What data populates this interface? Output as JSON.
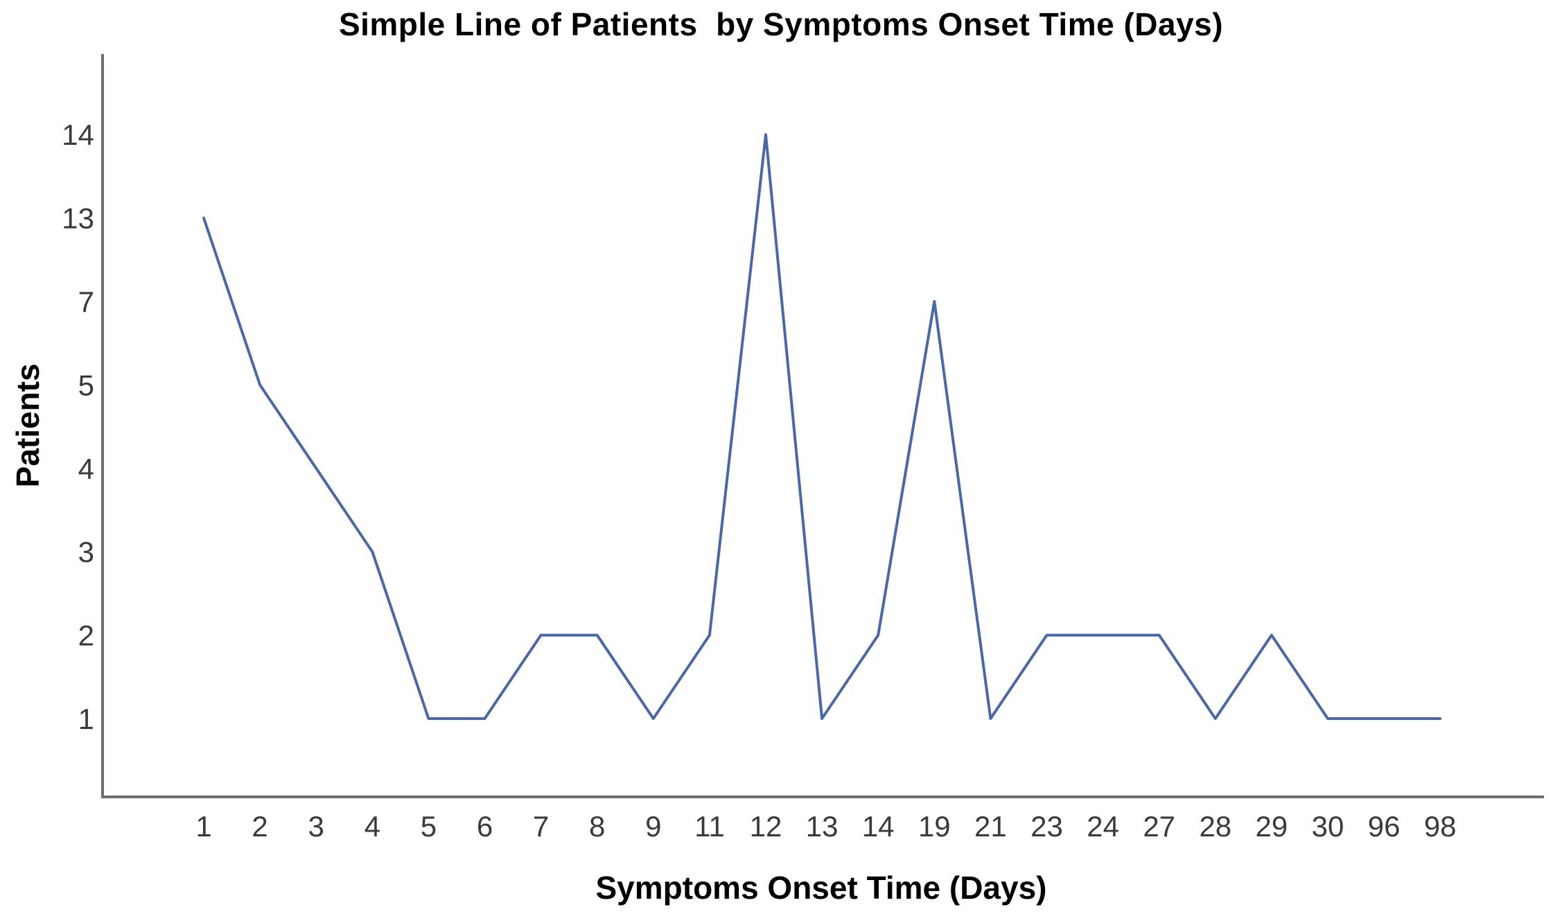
{
  "chart_data": {
    "type": "line",
    "title": "Simple Line of Patients  by Symptoms Onset Time (Days)",
    "xlabel": "Symptoms Onset Time (Days)",
    "ylabel": "Patients",
    "categories": [
      "1",
      "2",
      "3",
      "4",
      "5",
      "6",
      "7",
      "8",
      "9",
      "11",
      "12",
      "13",
      "14",
      "19",
      "21",
      "23",
      "24",
      "27",
      "28",
      "29",
      "30",
      "96",
      "98"
    ],
    "values": [
      13,
      5,
      4,
      3,
      1,
      1,
      2,
      2,
      1,
      2,
      14,
      1,
      2,
      7,
      1,
      2,
      2,
      2,
      1,
      2,
      1,
      1,
      1
    ],
    "y_tick_labels": [
      "1",
      "2",
      "3",
      "4",
      "5",
      "7",
      "13",
      "14"
    ],
    "x_axis_type": "categorical",
    "y_axis_type": "ordinal-even-spacing",
    "grid": false,
    "legend": "none",
    "colors": {
      "line": "#4a68a8",
      "axis": "#6e6e6e",
      "tick_text": "#3a3a3a",
      "title_text": "#000000",
      "background": "#ffffff"
    }
  }
}
